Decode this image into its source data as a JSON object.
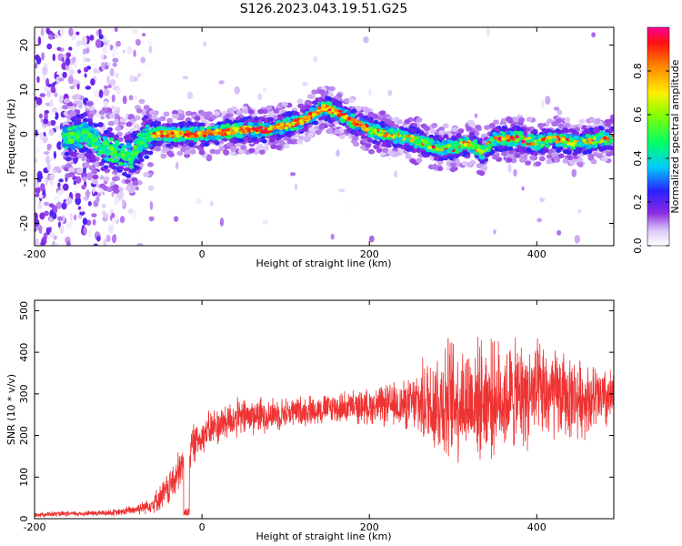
{
  "title": "S126.2023.043.19.51.G25",
  "colors": {
    "snr_line": "#ee3333",
    "axis": "#000000"
  },
  "chart_data": [
    {
      "type": "heatmap",
      "xlabel": "Height of straight line (km)",
      "ylabel": "Frequency (Hz)",
      "xlim": [
        -200,
        492
      ],
      "ylim": [
        -25,
        24
      ],
      "xticks": [
        {
          "v": -200,
          "label": "-200"
        },
        {
          "v": 0,
          "label": "0"
        },
        {
          "v": 200,
          "label": "200"
        },
        {
          "v": 400,
          "label": "400"
        }
      ],
      "yticks": [
        {
          "v": 20,
          "label": "20"
        },
        {
          "v": 10,
          "label": "10"
        },
        {
          "v": 0,
          "label": "0"
        },
        {
          "v": -10,
          "label": "-10"
        },
        {
          "v": -20,
          "label": "-20"
        }
      ],
      "grid": false,
      "ridge": {
        "x": [
          -160,
          -140,
          -120,
          -100,
          -85,
          -70,
          -60,
          -40,
          0,
          50,
          80,
          100,
          120,
          145,
          160,
          180,
          200,
          220,
          250,
          280,
          300,
          320,
          335,
          350,
          380,
          400,
          420,
          450,
          480,
          492
        ],
        "freq": [
          -1,
          0,
          -3,
          -4,
          -5,
          -1,
          0,
          0,
          0,
          1,
          1,
          2,
          3,
          6,
          5,
          3,
          1,
          0,
          -1,
          -3,
          -3,
          -2,
          -4,
          -1,
          -1,
          -2,
          -1,
          -2,
          -1,
          -1
        ]
      },
      "colorbar": {
        "label": "Normalized spectral amplitude",
        "range": [
          0,
          1
        ],
        "ticks": [
          {
            "v": 0.0,
            "label": "0.0"
          },
          {
            "v": 0.2,
            "label": "0.2"
          },
          {
            "v": 0.4,
            "label": "0.4"
          },
          {
            "v": 0.6,
            "label": "0.6"
          },
          {
            "v": 0.8,
            "label": "0.8"
          }
        ]
      }
    },
    {
      "type": "line",
      "xlabel": "Height of straight line (km)",
      "ylabel": "SNR (10 * v/v)",
      "xlim": [
        -200,
        492
      ],
      "ylim": [
        0,
        525
      ],
      "xticks": [
        {
          "v": -200,
          "label": "-200"
        },
        {
          "v": 0,
          "label": "0"
        },
        {
          "v": 200,
          "label": "200"
        },
        {
          "v": 400,
          "label": "400"
        }
      ],
      "yticks": [
        {
          "v": 0,
          "label": "0"
        },
        {
          "v": 100,
          "label": "100"
        },
        {
          "v": 200,
          "label": "200"
        },
        {
          "v": 300,
          "label": "300"
        },
        {
          "v": 400,
          "label": "400"
        },
        {
          "v": 500,
          "label": "500"
        }
      ],
      "grid": false,
      "envelope": {
        "x": [
          -200,
          -150,
          -100,
          -80,
          -60,
          -45,
          -30,
          -20,
          -10,
          0,
          10,
          20,
          30,
          50,
          80,
          100,
          150,
          200,
          250,
          270,
          290,
          300,
          350,
          400,
          450,
          492
        ],
        "mean": [
          10,
          12,
          15,
          22,
          35,
          60,
          100,
          140,
          180,
          200,
          215,
          225,
          235,
          245,
          250,
          255,
          265,
          270,
          275,
          280,
          285,
          285,
          290,
          300,
          290,
          285
        ],
        "spread": [
          6,
          6,
          8,
          12,
          20,
          35,
          50,
          55,
          45,
          40,
          45,
          45,
          45,
          45,
          40,
          35,
          35,
          40,
          60,
          110,
          150,
          140,
          130,
          120,
          90,
          70
        ]
      }
    }
  ]
}
